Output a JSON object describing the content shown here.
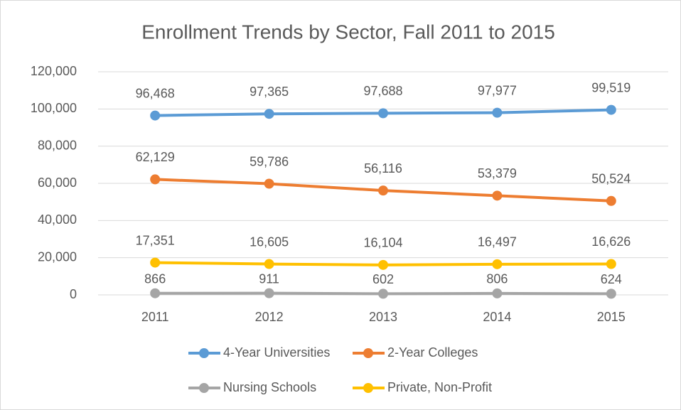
{
  "chart_data": {
    "type": "line",
    "title": "Enrollment Trends by Sector, Fall 2011 to 2015",
    "categories": [
      "2011",
      "2012",
      "2013",
      "2014",
      "2015"
    ],
    "series": [
      {
        "name": "4-Year Universities",
        "color": "#5b9bd5",
        "values": [
          96468,
          97365,
          97688,
          97977,
          99519
        ],
        "value_labels": [
          "96,468",
          "97,365",
          "97,688",
          "97,977",
          "99,519"
        ]
      },
      {
        "name": "2-Year Colleges",
        "color": "#ed7d31",
        "values": [
          62129,
          59786,
          56116,
          53379,
          50524
        ],
        "value_labels": [
          "62,129",
          "59,786",
          "56,116",
          "53,379",
          "50,524"
        ]
      },
      {
        "name": "Nursing Schools",
        "color": "#a5a5a5",
        "values": [
          866,
          911,
          602,
          806,
          624
        ],
        "value_labels": [
          "866",
          "911",
          "602",
          "806",
          "624"
        ]
      },
      {
        "name": "Private, Non-Profit",
        "color": "#ffc000",
        "values": [
          17351,
          16605,
          16104,
          16497,
          16626
        ],
        "value_labels": [
          "17,351",
          "16,605",
          "16,104",
          "16,497",
          "16,626"
        ]
      }
    ],
    "ylim": [
      0,
      120000
    ],
    "yticks": [
      0,
      {
        "value": 20000,
        "label": "20,000"
      },
      {
        "value": 40000,
        "label": "40,000"
      },
      {
        "value": 60000,
        "label": "60,000"
      },
      {
        "value": 80000,
        "label": "80,000"
      },
      {
        "value": 100000,
        "label": "100,000"
      },
      {
        "value": 120000,
        "label": "120,000"
      }
    ],
    "grid": true
  }
}
